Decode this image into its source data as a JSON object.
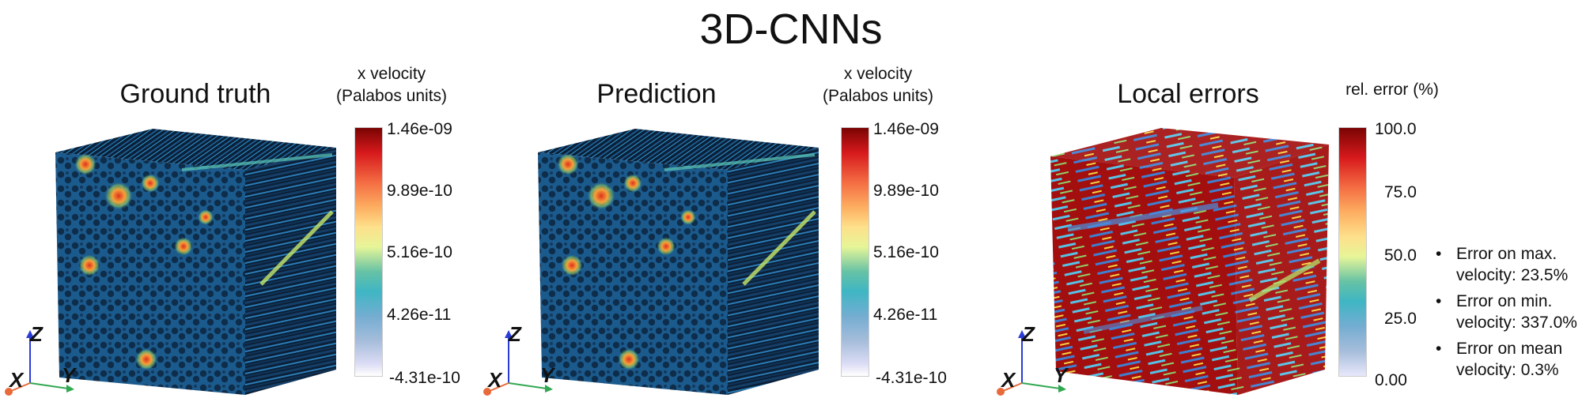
{
  "title": "3D-CNNs",
  "panels": [
    {
      "title": "Ground truth",
      "colorbar_title": [
        "x velocity",
        "(Palabos units)"
      ],
      "ticks": [
        "1.46e-09",
        "9.89e-10",
        "5.16e-10",
        "4.26e-11",
        "-4.31e-10"
      ]
    },
    {
      "title": "Prediction",
      "colorbar_title": [
        "x velocity",
        "(Palabos units)"
      ],
      "ticks": [
        "1.46e-09",
        "9.89e-10",
        "5.16e-10",
        "4.26e-11",
        "-4.31e-10"
      ]
    },
    {
      "title": "Local errors",
      "colorbar_title": [
        "rel. error (%)"
      ],
      "ticks": [
        "100.0",
        "75.0",
        "50.0",
        "25.0",
        "0.00"
      ]
    }
  ],
  "axes": {
    "x": "X",
    "y": "Y",
    "z": "Z"
  },
  "bullets": [
    {
      "line1": "Error on max.",
      "line2": "velocity: 23.5%"
    },
    {
      "line1": "Error on min.",
      "line2": "velocity: 337.0%"
    },
    {
      "line1": "Error on mean",
      "line2": "velocity: 0.3%"
    }
  ],
  "colors": {
    "cube_dark": "#0c2440",
    "cube_mid": "#1a5a8a",
    "hot": "#e8341c",
    "error_red": "#a30f0f"
  }
}
